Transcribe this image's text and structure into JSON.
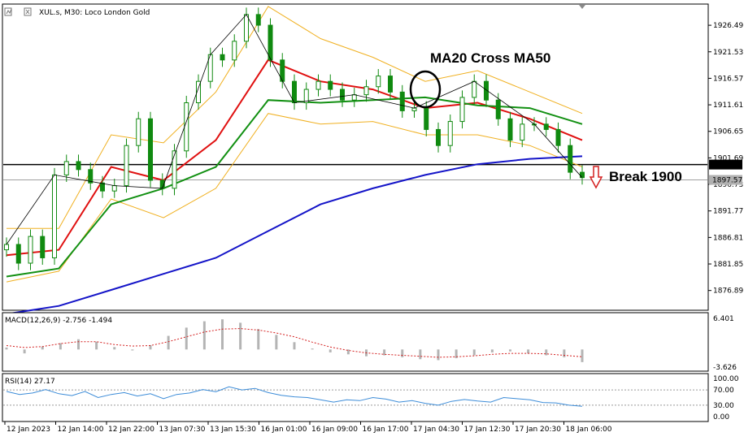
{
  "chart_header": {
    "symbol_text": "XUL.s, M30:  Loco London Gold",
    "annotation_cross": "MA20 Cross MA50",
    "annotation_break": "Break 1900"
  },
  "colors": {
    "candle": "#108a10",
    "ma_short": "#e01010",
    "ma_mid": "#129012",
    "ma_long": "#1414c8",
    "bollinger": "#f0b020",
    "zigzag": "#000000",
    "horizontal_line": "#000000",
    "macd_signal": "#d42020",
    "macd_hist": "#b4b4b4",
    "rsi": "#3c8cd8",
    "break_arrow": "#d42020"
  },
  "price_axis": {
    "ticks": [
      "1926.49",
      "1921.53",
      "1916.57",
      "1911.61",
      "1906.65",
      "1901.69",
      "1896.73",
      "1891.77",
      "1886.81",
      "1881.85",
      "1876.89"
    ],
    "line_label": "1900.44",
    "current_label": "1897.57"
  },
  "macd_panel": {
    "label": "MACD(12,26,9) -2.756 -1.494",
    "ticks": [
      "6.401",
      "-3.626"
    ]
  },
  "rsi_panel": {
    "label": "RSI(14) 27.17",
    "ticks": [
      "100.00",
      "70.00",
      "30.00",
      "0.00"
    ]
  },
  "time_axis": {
    "labels": [
      "12 Jan 2023",
      "12 Jan 14:00",
      "12 Jan 22:00",
      "13 Jan 07:30",
      "13 Jan 15:30",
      "16 Jan 01:00",
      "16 Jan 09:00",
      "16 Jan 17:00",
      "17 Jan 04:30",
      "17 Jan 12:30",
      "17 Jan 20:30",
      "18 Jan 06:00"
    ]
  },
  "chart_data": {
    "type": "line",
    "title": "XUL.s, M30: Loco London Gold",
    "x": [
      "12 Jan 2023",
      "12 Jan 14:00",
      "12 Jan 22:00",
      "13 Jan 07:30",
      "13 Jan 15:30",
      "16 Jan 01:00",
      "16 Jan 09:00",
      "16 Jan 17:00",
      "17 Jan 04:30",
      "17 Jan 12:30",
      "17 Jan 20:30",
      "18 Jan 06:00"
    ],
    "ylim": [
      1873.5,
      1930.0
    ],
    "horizontal_line": 1900.44,
    "current_price": 1897.57,
    "series": [
      {
        "name": "MA20",
        "values": [
          1883.5,
          1884.5,
          1900.0,
          1897.5,
          1905.0,
          1920.0,
          1916.0,
          1914.5,
          1911.0,
          1912.0,
          1909.0,
          1905.0
        ]
      },
      {
        "name": "MA50",
        "values": [
          1879.5,
          1881.0,
          1893.0,
          1896.0,
          1900.0,
          1912.5,
          1912.0,
          1912.5,
          1913.0,
          1911.5,
          1911.0,
          1908.0
        ]
      },
      {
        "name": "MA200",
        "values": [
          1872.5,
          1874.0,
          1877.0,
          1880.0,
          1883.0,
          1888.0,
          1893.0,
          1896.0,
          1898.5,
          1900.5,
          1901.5,
          1902.0
        ]
      }
    ],
    "candles": [
      1885.5,
      1882.0,
      1887.0,
      1883.0,
      1898.5,
      1901.0,
      1899.5,
      1897.0,
      1895.5,
      1896.5,
      1904.0,
      1909.0,
      1897.5,
      1896.0,
      1903.0,
      1912.0,
      1916.0,
      1921.0,
      1920.0,
      1923.5,
      1928.5,
      1926.5,
      1920.0,
      1916.0,
      1912.0,
      1914.5,
      1916.0,
      1914.5,
      1912.5,
      1913.5,
      1915.0,
      1917.0,
      1914.0,
      1910.5,
      1911.0,
      1907.0,
      1904.0,
      1908.5,
      1913.0,
      1916.0,
      1912.5,
      1909.0,
      1905.0,
      1908.0,
      1908.0,
      1907.0,
      1904.0,
      1899.0,
      1898.0
    ],
    "macd": {
      "hist": [
        0.4,
        -0.8,
        0.6,
        1.3,
        2.1,
        1.6,
        0.5,
        -0.2,
        0.9,
        2.8,
        4.5,
        5.8,
        6.2,
        5.5,
        4.2,
        3.0,
        1.5,
        0.2,
        -0.6,
        -1.0,
        -1.4,
        -1.2,
        -1.6,
        -2.0,
        -2.2,
        -1.8,
        -1.2,
        -0.6,
        -0.4,
        -0.8,
        -1.2,
        -1.6,
        -2.6
      ],
      "signal": [
        0.8,
        0.4,
        0.6,
        1.2,
        1.6,
        1.6,
        1.0,
        0.7,
        0.8,
        1.6,
        2.6,
        3.6,
        4.2,
        4.3,
        4.0,
        3.4,
        2.6,
        1.5,
        0.5,
        -0.2,
        -0.7,
        -1.0,
        -1.2,
        -1.4,
        -1.6,
        -1.5,
        -1.3,
        -1.0,
        -0.8,
        -0.8,
        -0.9,
        -1.2,
        -1.5
      ]
    },
    "rsi": [
      66,
      58,
      62,
      71,
      60,
      55,
      66,
      50,
      58,
      63,
      54,
      60,
      47,
      58,
      62,
      71,
      65,
      78,
      70,
      74,
      63,
      56,
      52,
      50,
      44,
      38,
      44,
      42,
      50,
      46,
      38,
      42,
      35,
      30,
      40,
      45,
      41,
      38,
      50,
      47,
      44,
      37,
      36,
      30,
      27
    ],
    "price_ticks": [
      "1926.49",
      "1921.53",
      "1916.57",
      "1911.61",
      "1906.65",
      "1901.69",
      "1896.73",
      "1891.77",
      "1886.81",
      "1881.85",
      "1876.89"
    ]
  }
}
